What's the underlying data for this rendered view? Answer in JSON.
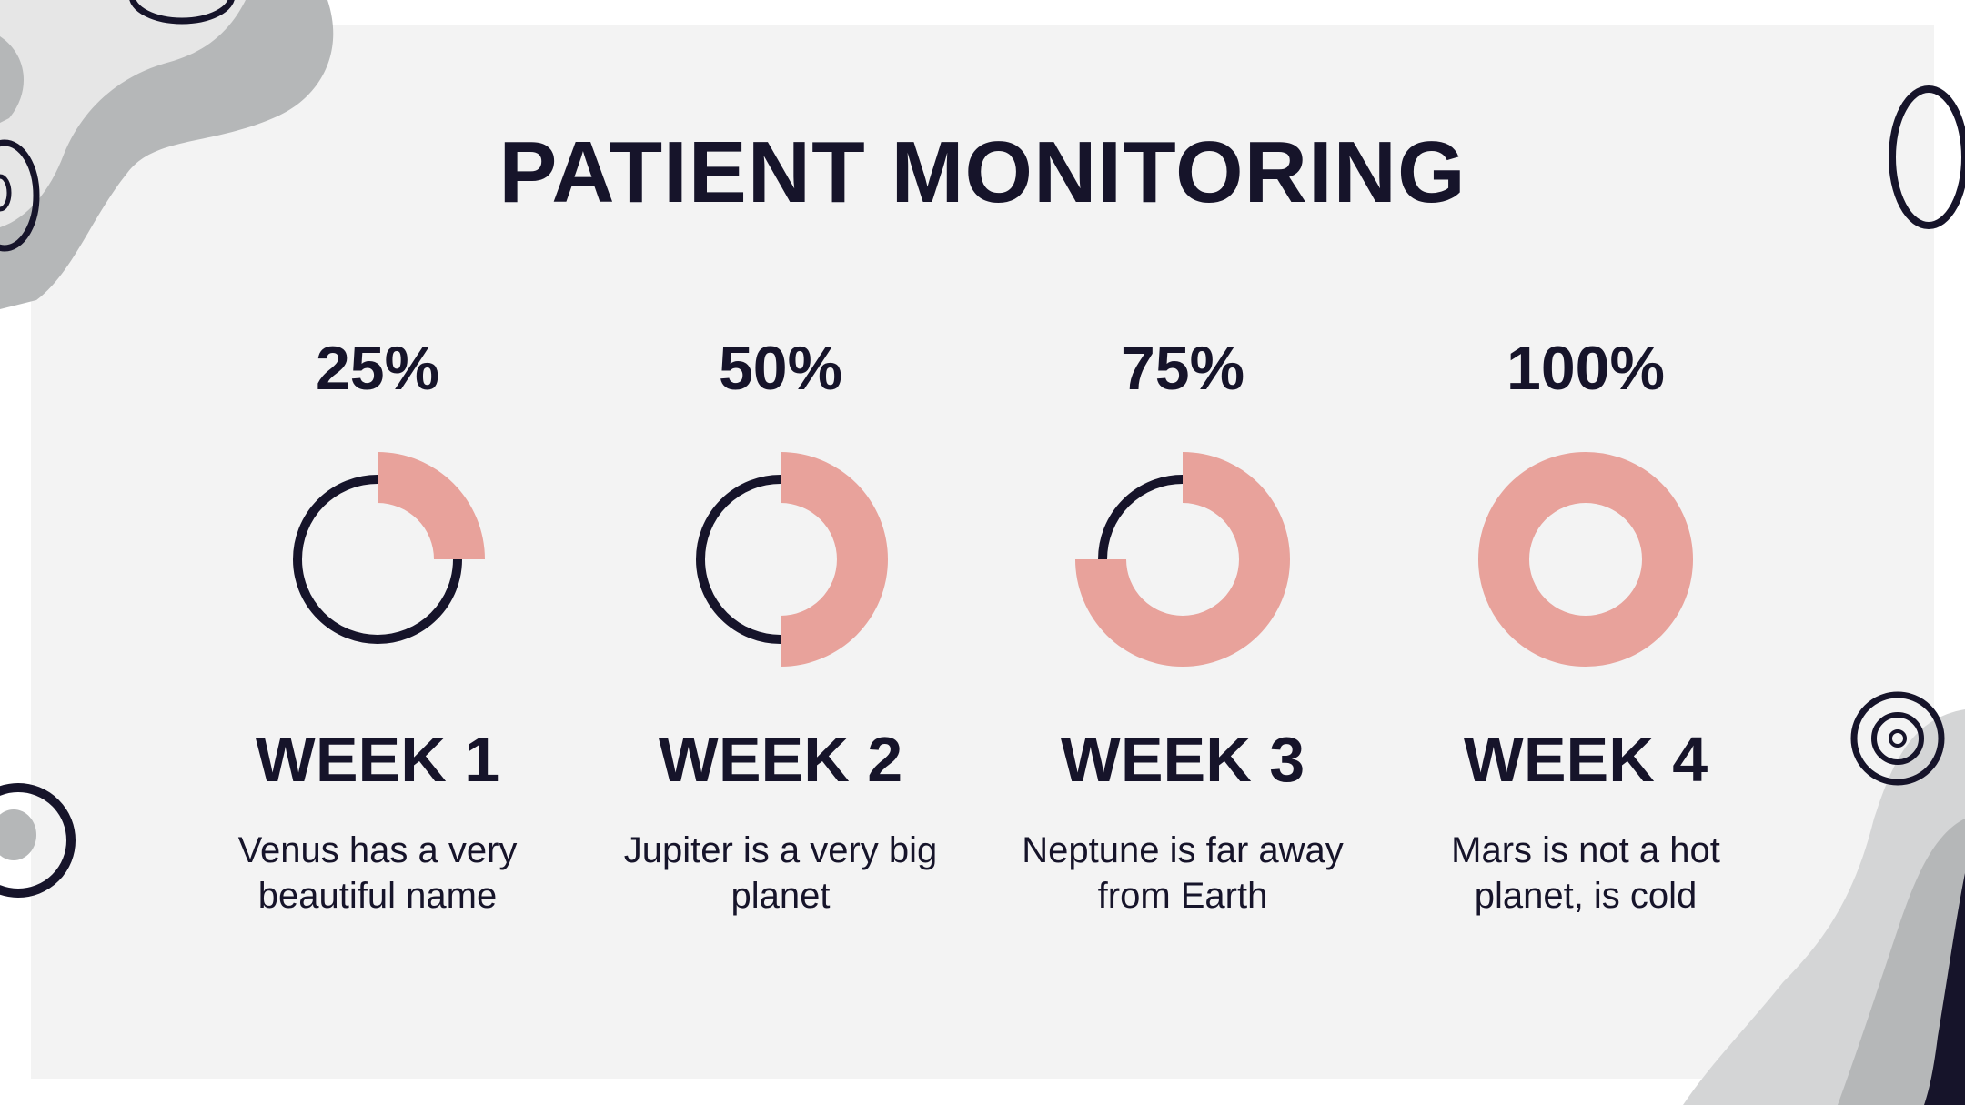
{
  "title": "PATIENT MONITORING",
  "colors": {
    "accent": "#e8a29b",
    "dark": "#16142a",
    "panel": "#f3f3f3",
    "decor_gray": "#b5b7b8"
  },
  "weeks": [
    {
      "percent_label": "25%",
      "progress": 0.25,
      "label": "WEEK 1",
      "desc_line1": "Venus has a very",
      "desc_line2": "beautiful name"
    },
    {
      "percent_label": "50%",
      "progress": 0.5,
      "label": "WEEK 2",
      "desc_line1": "Jupiter is a very big",
      "desc_line2": "planet"
    },
    {
      "percent_label": "75%",
      "progress": 0.75,
      "label": "WEEK 3",
      "desc_line1": "Neptune is far away",
      "desc_line2": "from Earth"
    },
    {
      "percent_label": "100%",
      "progress": 1.0,
      "label": "WEEK 4",
      "desc_line1": "Mars is not a hot",
      "desc_line2": "planet, is cold"
    }
  ]
}
